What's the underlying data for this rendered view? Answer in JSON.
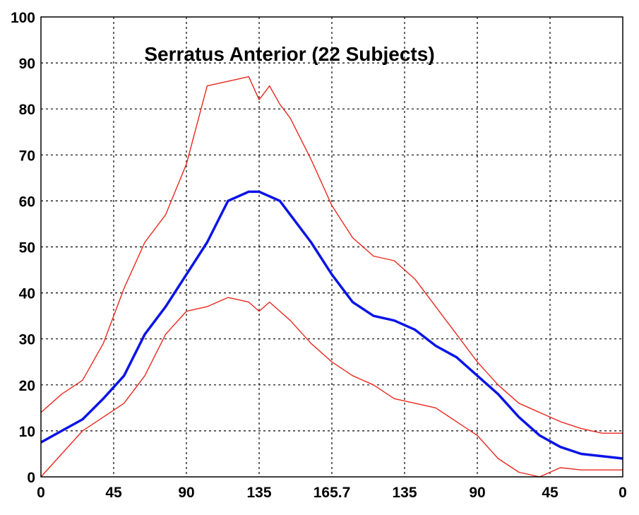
{
  "chart_data": {
    "type": "line",
    "title": "Serratus Anterior (22 Subjects)",
    "xlabel": "",
    "ylabel": "",
    "ylim": [
      0,
      100
    ],
    "xlim": [
      0,
      14
    ],
    "x_tick_labels": [
      "0",
      "45",
      "90",
      "135",
      "165.7",
      "135",
      "90",
      "45",
      "0"
    ],
    "y_ticks": [
      0,
      10,
      20,
      30,
      40,
      50,
      60,
      70,
      80,
      90,
      100
    ],
    "grid": true,
    "colors": {
      "mean": "#0a14e6",
      "band": "#e8281e",
      "grid": "#000000"
    },
    "x": [
      0,
      0.5,
      1,
      1.5,
      2,
      2.5,
      3,
      3.5,
      4,
      4.5,
      5,
      5.25,
      5.5,
      5.75,
      6,
      6.5,
      7,
      7.5,
      8,
      8.5,
      9,
      9.5,
      10,
      10.5,
      11,
      11.5,
      12,
      12.5,
      13,
      13.5,
      14
    ],
    "series": [
      {
        "values": [
          7.5,
          10,
          12.5,
          17,
          22,
          31,
          37,
          44,
          51,
          60,
          62,
          62,
          61,
          60,
          57,
          51,
          44,
          38,
          35,
          34,
          32,
          28.5,
          26,
          22,
          18,
          13,
          9,
          6.5,
          5,
          4.5,
          4
        ]
      },
      {
        "values": [
          14,
          18,
          21,
          29,
          41,
          51,
          57,
          68,
          85,
          86,
          87,
          82,
          85,
          81,
          78,
          69,
          59,
          52,
          48,
          47,
          43,
          37,
          31,
          25,
          20,
          16,
          14,
          12,
          10.5,
          9.5,
          9.5
        ]
      },
      {
        "values": [
          0,
          5,
          10,
          13,
          16,
          22,
          31,
          36,
          37,
          39,
          38,
          36,
          38,
          36,
          34,
          29,
          25,
          22,
          20,
          17,
          16,
          15,
          12,
          9,
          4,
          1,
          0,
          2,
          1.5,
          1.5,
          1.5
        ]
      }
    ]
  }
}
